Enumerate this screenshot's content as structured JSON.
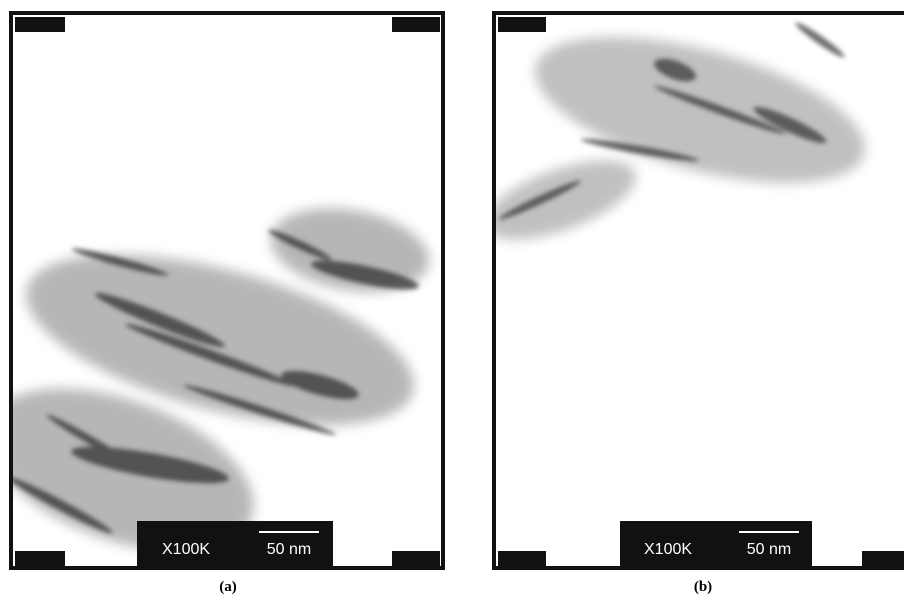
{
  "panels": [
    {
      "label": "(a)",
      "magnification": "X100K",
      "scale": "50 nm"
    },
    {
      "label": "(b)",
      "magnification": "X100K",
      "scale": "50 nm"
    }
  ]
}
